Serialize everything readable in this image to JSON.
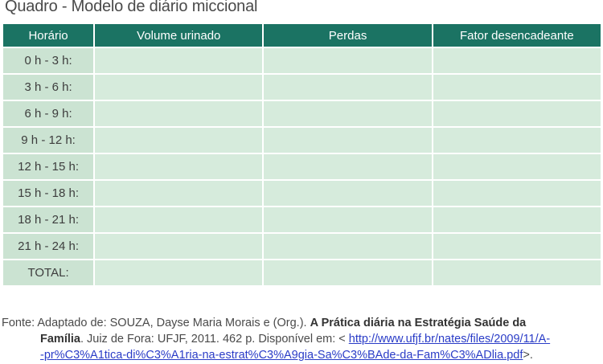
{
  "title": "Quadro - Modelo de diário miccional",
  "table": {
    "headers": [
      "Horário",
      "Volume urinado",
      "Perdas",
      "Fator desencadeante"
    ],
    "rows": [
      "0 h - 3 h:",
      "3 h - 6 h:",
      "6 h - 9 h:",
      "9 h - 12 h:",
      "12 h - 15 h:",
      "15 h - 18 h:",
      "18 h - 21 h:",
      "21 h - 24 h:",
      "TOTAL:"
    ]
  },
  "source": {
    "prefix": "Fonte: Adaptado de: SOUZA, Dayse Maria Morais e (Org.). ",
    "book_title_a": "A Prática diária na Estratégia Saúde da",
    "book_title_b": "Família",
    "details": ". Juiz de Fora: UFJF, 2011. 462 p. Disponível em: < ",
    "url_line1": "http://www.ufjf.br/nates/files/2009/11/A-",
    "url_line2": "-pr%C3%A1tica-di%C3%A1ria-na-estrat%C3%A9gia-Sa%C3%BAde-da-Fam%C3%ADlia.pdf",
    "suffix": ">."
  }
}
